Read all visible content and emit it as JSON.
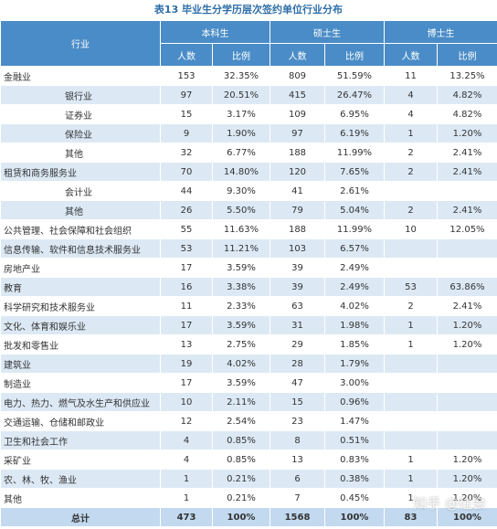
{
  "title": "表13 毕业生分学历层次签约单位行业分布",
  "header": {
    "industry": "行业",
    "groups": [
      "本科生",
      "硕士生",
      "博士生"
    ],
    "sub": [
      "人数",
      "比例",
      "人数",
      "比例",
      "人数",
      "比例"
    ]
  },
  "table": {
    "rows": [
      [
        "金融业",
        153,
        "32.35%",
        809,
        "51.59%",
        11,
        "13.25%"
      ],
      [
        "银行业",
        97,
        "20.51%",
        415,
        "26.47%",
        4,
        "4.82%"
      ],
      [
        "证券业",
        15,
        "3.17%",
        109,
        "6.95%",
        4,
        "4.82%"
      ],
      [
        "保险业",
        9,
        "1.90%",
        97,
        "6.19%",
        1,
        "1.20%"
      ],
      [
        "其他",
        32,
        "6.77%",
        188,
        "11.99%",
        2,
        "2.41%"
      ],
      [
        "租赁和商务服务业",
        70,
        "14.80%",
        120,
        "7.65%",
        2,
        "2.41%"
      ],
      [
        "会计业",
        44,
        "9.30%",
        41,
        "2.61%",
        null,
        null
      ],
      [
        "其他",
        26,
        "5.50%",
        79,
        "5.04%",
        2,
        "2.41%"
      ],
      [
        "公共管理、社会保障和社会组织",
        55,
        "11.63%",
        188,
        "11.99%",
        10,
        "12.05%"
      ],
      [
        "信息传输、软件和信息技术服务业",
        53,
        "11.21%",
        103,
        "6.57%",
        null,
        null
      ],
      [
        "房地产业",
        17,
        "3.59%",
        39,
        "2.49%",
        null,
        null
      ],
      [
        "教育",
        16,
        "3.38%",
        39,
        "2.49%",
        53,
        "63.86%"
      ],
      [
        "科学研究和技术服务业",
        11,
        "2.33%",
        63,
        "4.02%",
        2,
        "2.41%"
      ],
      [
        "文化、体育和娱乐业",
        17,
        "3.59%",
        31,
        "1.98%",
        1,
        "1.20%"
      ],
      [
        "批发和零售业",
        13,
        "2.75%",
        29,
        "1.85%",
        1,
        "1.20%"
      ],
      [
        "建筑业",
        19,
        "4.02%",
        28,
        "1.79%",
        null,
        null
      ],
      [
        "制造业",
        17,
        "3.59%",
        47,
        "3.00%",
        null,
        null
      ],
      [
        "电力、热力、燃气及水生产和供应业",
        10,
        "2.11%",
        15,
        "0.96%",
        null,
        null
      ],
      [
        "交通运输、仓储和邮政业",
        12,
        "2.54%",
        23,
        "1.47%",
        null,
        null
      ],
      [
        "卫生和社会工作",
        4,
        "0.85%",
        8,
        "0.51%",
        null,
        null
      ],
      [
        "采矿业",
        4,
        "0.85%",
        13,
        "0.83%",
        1,
        "1.20%"
      ],
      [
        "农、林、牧、渔业",
        1,
        "0.21%",
        6,
        "0.38%",
        1,
        "1.20%"
      ],
      [
        "其他",
        1,
        "0.21%",
        7,
        "0.45%",
        1,
        "1.20%"
      ],
      [
        "总计",
        473,
        "100%",
        1568,
        "100%",
        83,
        "100%"
      ]
    ]
  },
  "watermark": "知乎 @往会"
}
